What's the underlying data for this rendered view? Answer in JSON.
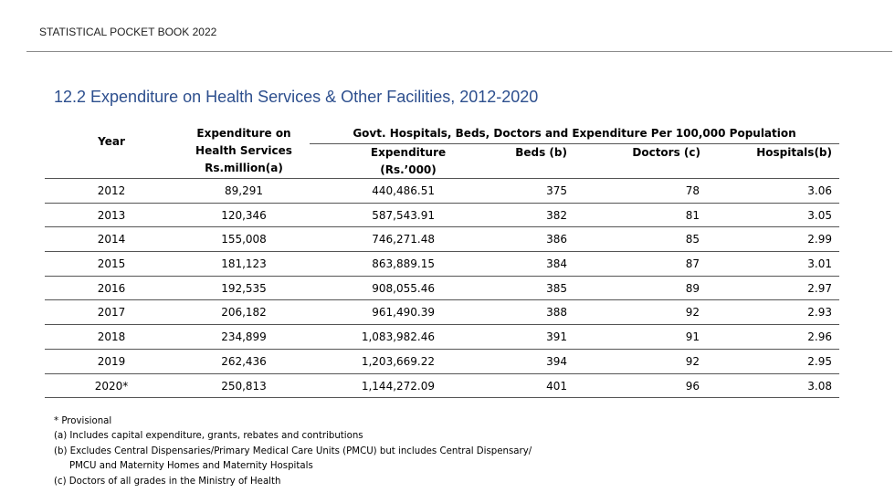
{
  "header": {
    "text": "STATISTICAL POCKET BOOK 2022"
  },
  "title": "12.2  Expenditure on Health Services & Other Facilities, 2012-2020",
  "table": {
    "columns": {
      "year": "Year",
      "expenditure_lines": [
        "Expenditure on",
        "Health Services",
        "Rs.million(a)"
      ],
      "group": "Govt. Hospitals, Beds, Doctors and  Expenditure Per  100,000  Population",
      "expenditure2_lines": [
        "Expenditure",
        "(Rs.’000)"
      ],
      "beds": "Beds (b)",
      "doctors": "Doctors (c)",
      "hospitals": "Hospitals(b)"
    },
    "rows": [
      {
        "year": "2012",
        "exp": "89,291",
        "exp2": "440,486.51",
        "beds": "375",
        "doctors": "78",
        "hospitals": "3.06"
      },
      {
        "year": "2013",
        "exp": "120,346",
        "exp2": "587,543.91",
        "beds": "382",
        "doctors": "81",
        "hospitals": "3.05"
      },
      {
        "year": "2014",
        "exp": "155,008",
        "exp2": "746,271.48",
        "beds": "386",
        "doctors": "85",
        "hospitals": "2.99"
      },
      {
        "year": "2015",
        "exp": "181,123",
        "exp2": "863,889.15",
        "beds": "384",
        "doctors": "87",
        "hospitals": "3.01"
      },
      {
        "year": "2016",
        "exp": "192,535",
        "exp2": "908,055.46",
        "beds": "385",
        "doctors": "89",
        "hospitals": "2.97"
      },
      {
        "year": "2017",
        "exp": "206,182",
        "exp2": "961,490.39",
        "beds": "388",
        "doctors": "92",
        "hospitals": "2.93"
      },
      {
        "year": "2018",
        "exp": "234,899",
        "exp2": "1,083,982.46",
        "beds": "391",
        "doctors": "91",
        "hospitals": "2.96"
      },
      {
        "year": "2019",
        "exp": "262,436",
        "exp2": "1,203,669.22",
        "beds": "394",
        "doctors": "92",
        "hospitals": "2.95"
      },
      {
        "year": "2020*",
        "exp": "250,813",
        "exp2": "1,144,272.09",
        "beds": "401",
        "doctors": "96",
        "hospitals": "3.08"
      }
    ]
  },
  "notes": [
    "* Provisional",
    "(a)  Includes capital expenditure, grants, rebates and contributions",
    "(b) Excludes Central Dispensaries/Primary Medical Care Units (PMCU) but includes Central Dispensary/",
    "PMCU and Maternity Homes and  Maternity Hospitals",
    "(c) Doctors of all grades in the Ministry of Health"
  ]
}
